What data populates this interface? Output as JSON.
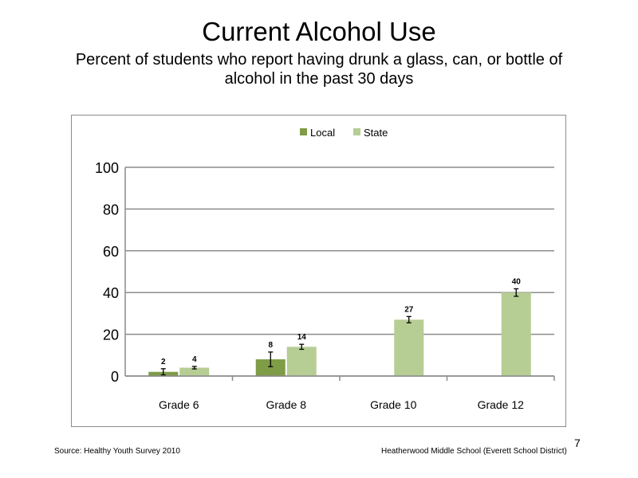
{
  "slide": {
    "title": "Current Alcohol Use",
    "subtitle": "Percent of students who report having drunk a glass, can, or bottle of alcohol in the past 30 days",
    "source": "Source: Healthy Youth Survey 2010",
    "school": "Heatherwood Middle  School (Everett School District)",
    "page_number": "7"
  },
  "colors": {
    "local": "#7f9c47",
    "state": "#b6cd94",
    "grid": "#8c8c8c"
  },
  "chart_data": {
    "type": "bar",
    "title": "",
    "xlabel": "",
    "ylabel": "",
    "categories": [
      "Grade 6",
      "Grade 8",
      "Grade 10",
      "Grade 12"
    ],
    "ylim": [
      0,
      100
    ],
    "yticks": [
      0,
      20,
      40,
      60,
      80,
      100
    ],
    "grid": true,
    "legend_position": "top",
    "series": [
      {
        "name": "Local",
        "values": [
          2,
          8,
          null,
          null
        ],
        "labels": [
          "2",
          "8",
          null,
          null
        ],
        "error": [
          1.5,
          3.5,
          null,
          null
        ]
      },
      {
        "name": "State",
        "values": [
          4,
          14,
          27,
          40
        ],
        "labels": [
          "4",
          "14",
          "27",
          "40"
        ],
        "error": [
          0.6,
          1.2,
          1.5,
          1.8
        ]
      }
    ]
  }
}
